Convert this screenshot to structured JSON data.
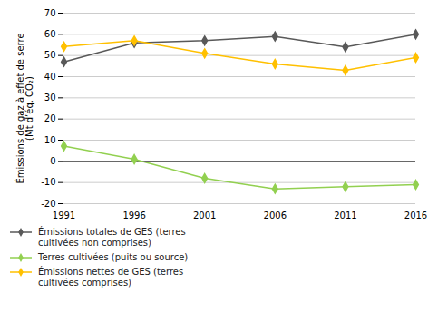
{
  "chart_data": {
    "type": "line",
    "x": [
      1991,
      1996,
      2001,
      2006,
      2011,
      2016
    ],
    "xlim": [
      1991,
      2016
    ],
    "xticks": [
      1991,
      1996,
      2001,
      2006,
      2011,
      2016
    ],
    "series": [
      {
        "name": "Émissions totales de GES (terres\ncultivées non comprises)",
        "color": "#595959",
        "marker": "diamond",
        "values": [
          47,
          56,
          57,
          59,
          54,
          60
        ]
      },
      {
        "name": "Terres cultivées (puits ou source)",
        "color": "#92D050",
        "marker": "diamond",
        "values": [
          7.2,
          1.0,
          -8.0,
          -13.0,
          -12.0,
          -11.0
        ]
      },
      {
        "name": "Émissions nettes de GES (terres\ncultivées comprises)",
        "color": "#FFC000",
        "marker": "diamond",
        "values": [
          54.2,
          57.0,
          51.0,
          46.0,
          43.0,
          49.0
        ]
      }
    ],
    "ylabel": "Émissions de gaz à effet de serre\n(Mt d’éq. CO₂)",
    "ylim": [
      -20,
      70
    ],
    "yticks": [
      -20,
      -10,
      0,
      10,
      20,
      30,
      40,
      50,
      60,
      70
    ],
    "grid": true,
    "legend": "bottom"
  }
}
